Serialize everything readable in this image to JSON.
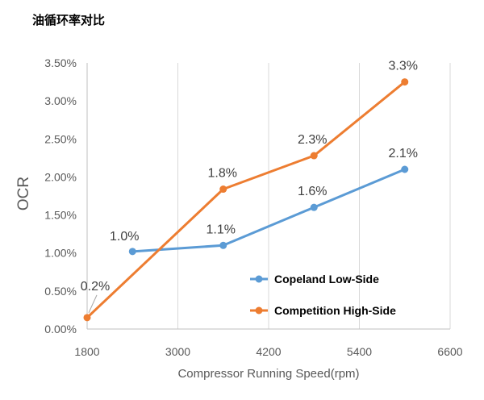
{
  "chart_data": {
    "type": "line",
    "title": "油循环率对比",
    "xlabel": "Compressor Running Speed(rpm)",
    "ylabel": "OCR",
    "xlim": [
      1800,
      6600
    ],
    "ylim": [
      0,
      0.035
    ],
    "x_ticks": [
      1800,
      3000,
      4200,
      5400,
      6600
    ],
    "x_tick_labels": [
      "1800",
      "3000",
      "4200",
      "5400",
      "6600"
    ],
    "y_ticks": [
      0,
      0.005,
      0.01,
      0.015,
      0.02,
      0.025,
      0.03,
      0.035
    ],
    "y_tick_labels": [
      "0.00%",
      "0.50%",
      "1.00%",
      "1.50%",
      "2.00%",
      "2.50%",
      "3.00%",
      "3.50%"
    ],
    "grid": "vertical",
    "legend_position": "bottom-right",
    "series": [
      {
        "name": "Copeland Low-Side",
        "color": "#5B9BD5",
        "x": [
          2400,
          3600,
          4800,
          6000
        ],
        "y": [
          0.0102,
          0.011,
          0.016,
          0.021
        ],
        "labels": [
          "1.0%",
          "1.1%",
          "1.6%",
          "2.1%"
        ]
      },
      {
        "name": "Competition High-Side",
        "color": "#ED7D31",
        "x": [
          1800,
          3600,
          4800,
          6000
        ],
        "y": [
          0.0015,
          0.0184,
          0.0228,
          0.0325
        ],
        "labels": [
          "0.2%",
          "1.8%",
          "2.3%",
          "3.3%"
        ]
      }
    ]
  }
}
